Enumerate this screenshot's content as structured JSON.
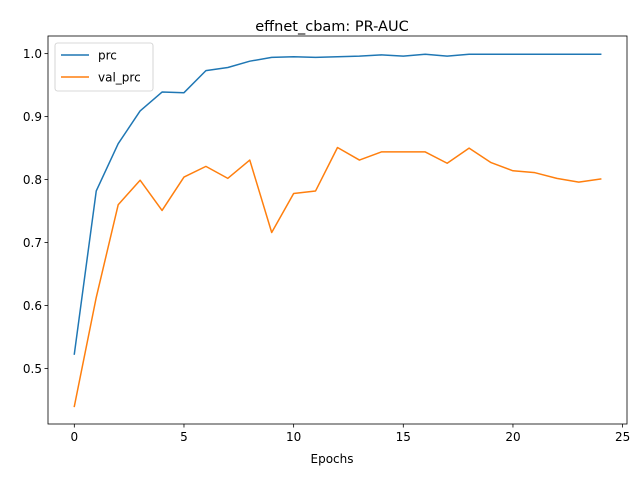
{
  "chart_data": {
    "type": "line",
    "title": "effnet_cbam: PR-AUC",
    "xlabel": "Epochs",
    "ylabel": "",
    "x": [
      0,
      1,
      2,
      3,
      4,
      5,
      6,
      7,
      8,
      9,
      10,
      11,
      12,
      13,
      14,
      15,
      16,
      17,
      18,
      19,
      20,
      21,
      22,
      23,
      24
    ],
    "xlim": [
      -1.2,
      25.2
    ],
    "ylim": [
      0.412,
      1.028
    ],
    "xticks": [
      0,
      5,
      10,
      15,
      20,
      25
    ],
    "yticks": [
      0.5,
      0.6,
      0.7,
      0.8,
      0.9,
      1.0
    ],
    "ytick_labels": [
      "0.5",
      "0.6",
      "0.7",
      "0.8",
      "0.9",
      "1.0"
    ],
    "grid": false,
    "legend_position": "upper-left",
    "series": [
      {
        "name": "prc",
        "color": "#1f77b4",
        "values": [
          0.523,
          0.782,
          0.857,
          0.909,
          0.939,
          0.938,
          0.973,
          0.978,
          0.988,
          0.994,
          0.995,
          0.994,
          0.995,
          0.996,
          0.998,
          0.996,
          0.999,
          0.996,
          0.999,
          0.999,
          0.999,
          0.999,
          0.999,
          0.999,
          0.999
        ]
      },
      {
        "name": "val_prc",
        "color": "#ff7f0e",
        "values": [
          0.44,
          0.613,
          0.76,
          0.799,
          0.751,
          0.804,
          0.821,
          0.802,
          0.831,
          0.716,
          0.778,
          0.782,
          0.851,
          0.831,
          0.844,
          0.844,
          0.844,
          0.826,
          0.85,
          0.827,
          0.814,
          0.811,
          0.802,
          0.796,
          0.801
        ]
      }
    ]
  }
}
